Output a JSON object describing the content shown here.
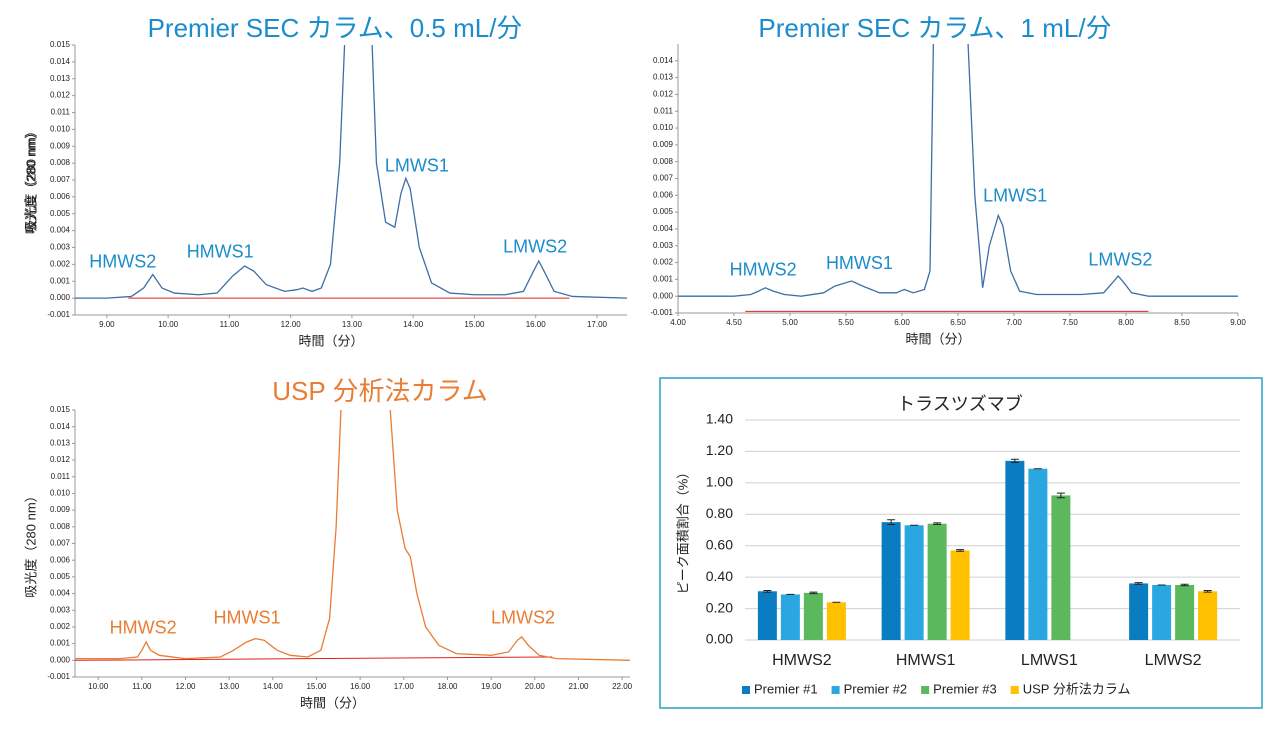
{
  "chart_data": [
    {
      "type": "line",
      "title": "Premier SEC カラム、0.5 mL/分",
      "xlabel": "時間（分）",
      "ylabel": "吸光度（280 nm）",
      "color": "#3d6fa6",
      "x": [
        8.48,
        9.0,
        9.4,
        9.6,
        9.75,
        9.9,
        10.1,
        10.5,
        10.8,
        10.95,
        11.05,
        11.25,
        11.4,
        11.6,
        11.9,
        12.1,
        12.2,
        12.35,
        12.5,
        12.65,
        12.8,
        12.88,
        13.1,
        13.33,
        13.4,
        13.55,
        13.7,
        13.8,
        13.88,
        13.95,
        14.1,
        14.3,
        14.6,
        15.0,
        15.5,
        15.8,
        15.95,
        16.05,
        16.15,
        16.3,
        16.6,
        17.49
      ],
      "values": [
        0.0,
        0.0,
        0.0001,
        0.0006,
        0.0014,
        0.0006,
        0.0003,
        0.0002,
        0.0003,
        0.0009,
        0.0013,
        0.0019,
        0.0016,
        0.0008,
        0.0004,
        0.0005,
        0.0006,
        0.0004,
        0.0006,
        0.002,
        0.008,
        0.015,
        null,
        0.015,
        0.008,
        0.0045,
        0.0042,
        0.0062,
        0.0071,
        0.0065,
        0.003,
        0.0009,
        0.0003,
        0.0002,
        0.0002,
        0.0004,
        0.0015,
        0.0022,
        0.0015,
        0.0004,
        0.0001,
        0.0
      ],
      "baseline": {
        "x": [
          9.35,
          16.55
        ],
        "values": [
          0.0,
          0.0
        ],
        "color": "#e0201b"
      },
      "annotations": [
        {
          "text": "HMWS2",
          "x": 9.26,
          "y": 0.0021
        },
        {
          "text": "HMWS1",
          "x": 10.85,
          "y": 0.0027
        },
        {
          "text": "LMWS1",
          "x": 14.06,
          "y": 0.0078
        },
        {
          "text": "LMWS2",
          "x": 15.99,
          "y": 0.003
        }
      ],
      "xlim": [
        8.48,
        17.49
      ],
      "ylim": [
        -0.001,
        0.015
      ],
      "xticks": [
        {
          "value": 9,
          "label": "9.00"
        },
        {
          "value": 10,
          "label": "10.00"
        },
        {
          "value": 11,
          "label": "11.00"
        },
        {
          "value": 12,
          "label": "12.00"
        },
        {
          "value": 13,
          "label": "13.00"
        },
        {
          "value": 14,
          "label": "14.00"
        },
        {
          "value": 15,
          "label": "15.00"
        },
        {
          "value": 16,
          "label": "16.00"
        },
        {
          "value": 17,
          "label": "17.00"
        }
      ],
      "yticks": [
        -0.001,
        {
          "value": 0,
          "label": "0.000"
        },
        0.001,
        0.002,
        0.003,
        0.004,
        0.005,
        0.006,
        0.007,
        0.008,
        0.009,
        {
          "value": 0.01,
          "label": "0.010"
        },
        0.011,
        0.012,
        0.013,
        0.014,
        0.015
      ]
    },
    {
      "type": "line",
      "title": "Premier SEC カラム、1 mL/分",
      "xlabel": "時間（分）",
      "ylabel": "吸光度（280 nm）",
      "color": "#3d6fa6",
      "x": [
        4.0,
        4.5,
        4.65,
        4.72,
        4.78,
        4.85,
        4.95,
        5.1,
        5.3,
        5.4,
        5.55,
        5.65,
        5.8,
        5.95,
        6.02,
        6.1,
        6.2,
        6.25,
        6.28,
        6.45,
        6.59,
        6.65,
        6.72,
        6.78,
        6.86,
        6.9,
        6.97,
        7.05,
        7.2,
        7.6,
        7.8,
        7.88,
        7.93,
        7.97,
        8.05,
        8.2,
        9.0
      ],
      "values": [
        0.0,
        0.0,
        0.0001,
        0.0003,
        0.0005,
        0.0003,
        0.0001,
        0.0,
        0.0002,
        0.0006,
        0.0009,
        0.0006,
        0.0002,
        0.0002,
        0.0004,
        0.0002,
        0.0004,
        0.0015,
        0.015,
        null,
        0.015,
        0.006,
        0.0005,
        0.003,
        0.0048,
        0.0042,
        0.0015,
        0.0003,
        0.0001,
        0.0001,
        0.0002,
        0.0008,
        0.0012,
        0.0009,
        0.0002,
        0.0,
        0.0
      ],
      "baseline": {
        "x": [
          4.6,
          8.2
        ],
        "values": [
          -0.0009,
          -0.0009
        ],
        "color": "#e0201b"
      },
      "annotations": [
        {
          "text": "HMWS2",
          "x": 4.76,
          "y": 0.0015
        },
        {
          "text": "HMWS1",
          "x": 5.62,
          "y": 0.0019
        },
        {
          "text": "LMWS1",
          "x": 7.01,
          "y": 0.0059
        },
        {
          "text": "LMWS2",
          "x": 7.95,
          "y": 0.0021
        }
      ],
      "xlim": [
        4,
        9
      ],
      "ylim": [
        -0.001,
        0.015
      ],
      "xticks": [
        {
          "value": 4,
          "label": "4.00"
        },
        {
          "value": 4.5,
          "label": "4.50"
        },
        {
          "value": 5,
          "label": "5.00"
        },
        {
          "value": 5.5,
          "label": "5.50"
        },
        {
          "value": 6,
          "label": "6.00"
        },
        {
          "value": 6.5,
          "label": "6.50"
        },
        {
          "value": 7,
          "label": "7.00"
        },
        {
          "value": 7.5,
          "label": "7.50"
        },
        {
          "value": 8,
          "label": "8.00"
        },
        {
          "value": 8.5,
          "label": "8.50"
        },
        {
          "value": 9,
          "label": "9.00"
        }
      ],
      "yticks": [
        -0.001,
        {
          "value": 0,
          "label": "0.000"
        },
        0.001,
        0.002,
        0.003,
        0.004,
        0.005,
        0.006,
        0.007,
        0.008,
        0.009,
        {
          "value": 0.01,
          "label": "0.010"
        },
        0.011,
        0.012,
        0.013,
        0.014
      ]
    },
    {
      "type": "line",
      "title": "USP 分析法カラム",
      "xlabel": "時間（分）",
      "ylabel": "吸光度（280 nm）",
      "color": "#ea7c34",
      "x": [
        9.47,
        10.5,
        10.9,
        11.0,
        11.1,
        11.2,
        11.4,
        12.0,
        12.8,
        13.1,
        13.4,
        13.6,
        13.8,
        14.1,
        14.4,
        14.8,
        15.1,
        15.3,
        15.45,
        15.56,
        16.1,
        16.69,
        16.85,
        17.03,
        17.15,
        17.3,
        17.5,
        17.8,
        18.2,
        19.0,
        19.4,
        19.6,
        19.7,
        19.85,
        20.1,
        20.5,
        22.18
      ],
      "values": [
        0.0001,
        0.0001,
        0.0002,
        0.0006,
        0.0011,
        0.0006,
        0.0003,
        0.0001,
        0.0002,
        0.0006,
        0.0011,
        0.0013,
        0.0012,
        0.0006,
        0.0003,
        0.0002,
        0.0006,
        0.0025,
        0.008,
        0.015,
        null,
        0.015,
        0.009,
        0.0067,
        0.0062,
        0.004,
        0.002,
        0.0009,
        0.0004,
        0.0003,
        0.0005,
        0.0012,
        0.0014,
        0.0009,
        0.0003,
        0.0001,
        0.0
      ],
      "baseline": {
        "x": [
          9.47,
          20.4
        ],
        "values": [
          0.0,
          0.0002
        ],
        "color": "#e0201b"
      },
      "annotations": [
        {
          "text": "HMWS2",
          "x": 11.03,
          "y": 0.0019
        },
        {
          "text": "HMWS1",
          "x": 13.41,
          "y": 0.0025
        },
        {
          "text": "LMWS2",
          "x": 19.73,
          "y": 0.0025
        }
      ],
      "xlim": [
        9.47,
        22.18
      ],
      "ylim": [
        -0.001,
        0.015
      ],
      "xticks": [
        {
          "value": 10,
          "label": "10.00"
        },
        {
          "value": 11,
          "label": "11.00"
        },
        {
          "value": 12,
          "label": "12.00"
        },
        {
          "value": 13,
          "label": "13.00"
        },
        {
          "value": 14,
          "label": "14.00"
        },
        {
          "value": 15,
          "label": "15.00"
        },
        {
          "value": 16,
          "label": "16.00"
        },
        {
          "value": 17,
          "label": "17.00"
        },
        {
          "value": 18,
          "label": "18.00"
        },
        {
          "value": 19,
          "label": "19.00"
        },
        {
          "value": 20,
          "label": "20.00"
        },
        {
          "value": 21,
          "label": "21.00"
        },
        {
          "value": 22,
          "label": "22.00"
        }
      ],
      "yticks": [
        -0.001,
        {
          "value": 0,
          "label": "0.000"
        },
        0.001,
        0.002,
        0.003,
        0.004,
        0.005,
        0.006,
        0.007,
        0.008,
        0.009,
        {
          "value": 0.01,
          "label": "0.010"
        },
        0.011,
        0.012,
        0.013,
        0.014,
        0.015
      ]
    },
    {
      "type": "bar",
      "title": "トラスツズマブ",
      "ylabel": "ピーク面積割合（%）",
      "categories": [
        "HMWS2",
        "HMWS1",
        "LMWS1",
        "LMWS2"
      ],
      "series": [
        {
          "name": "Premier #1",
          "color": "#0a7dc2",
          "values": [
            0.31,
            0.75,
            1.14,
            0.36
          ],
          "errors": [
            0.005,
            0.015,
            0.01,
            0.005
          ]
        },
        {
          "name": "Premier #2",
          "color": "#2aa7e0",
          "values": [
            0.29,
            0.73,
            1.09,
            0.35
          ],
          "errors": [
            0.0,
            0.0,
            0.0,
            0.0
          ]
        },
        {
          "name": "Premier #3",
          "color": "#5cb85c",
          "values": [
            0.3,
            0.74,
            0.92,
            0.35
          ],
          "errors": [
            0.005,
            0.005,
            0.015,
            0.005
          ]
        },
        {
          "name": "USP 分析法カラム",
          "color": "#ffc000",
          "values": [
            0.24,
            0.57,
            null,
            0.31
          ],
          "errors": [
            0.0,
            0.005,
            null,
            0.005
          ]
        }
      ],
      "ylim": [
        0,
        1.4
      ],
      "yticks": [
        {
          "value": 0,
          "label": "0.00"
        },
        {
          "value": 0.2,
          "label": "0.20"
        },
        {
          "value": 0.4,
          "label": "0.40"
        },
        {
          "value": 0.6,
          "label": "0.60"
        },
        {
          "value": 0.8,
          "label": "0.80"
        },
        {
          "value": 1,
          "label": "1.00"
        },
        {
          "value": 1.2,
          "label": "1.20"
        },
        {
          "value": 1.4,
          "label": "1.40"
        }
      ],
      "grid": true,
      "legend": "bottom"
    }
  ]
}
